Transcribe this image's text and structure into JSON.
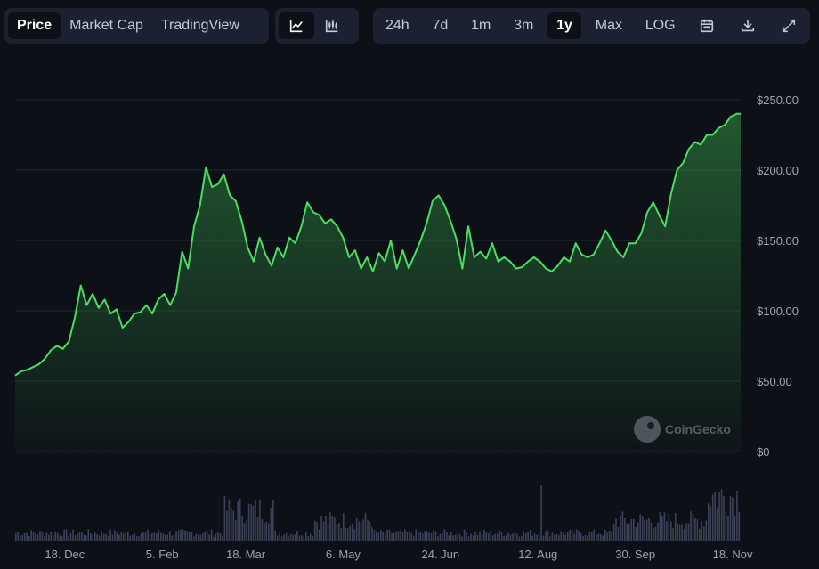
{
  "tabs": [
    {
      "label": "Price",
      "active": true
    },
    {
      "label": "Market Cap",
      "active": false
    },
    {
      "label": "TradingView",
      "active": false
    }
  ],
  "chart_types": [
    {
      "icon": "line-chart-icon",
      "active": true
    },
    {
      "icon": "candlestick-chart-icon",
      "active": false
    }
  ],
  "ranges": [
    {
      "label": "24h",
      "active": false
    },
    {
      "label": "7d",
      "active": false
    },
    {
      "label": "1m",
      "active": false
    },
    {
      "label": "3m",
      "active": false
    },
    {
      "label": "1y",
      "active": true
    },
    {
      "label": "Max",
      "active": false
    },
    {
      "label": "LOG",
      "active": false
    }
  ],
  "tools": [
    "calendar-icon",
    "download-icon",
    "expand-icon"
  ],
  "watermark": "CoinGecko",
  "colors": {
    "line": "#4ade5f",
    "background": "#0d1117",
    "panel": "#1b2130",
    "volume": "#3b4257"
  },
  "chart_data": {
    "type": "area",
    "y_ticks": [
      "$0",
      "$50.00",
      "$100.00",
      "$150.00",
      "$200.00",
      "$250.00"
    ],
    "ylim": [
      0,
      250
    ],
    "x_ticks": [
      "18. Dec",
      "5. Feb",
      "18. Mar",
      "6. May",
      "24. Jun",
      "12. Aug",
      "30. Sep",
      "18. Nov"
    ],
    "x_tick_days": [
      25,
      74,
      116,
      165,
      214,
      263,
      312,
      361
    ],
    "x_range_days": [
      0,
      365
    ],
    "grid": true,
    "series": [
      {
        "x": [
          0,
          3,
          6,
          9,
          12,
          15,
          18,
          21,
          24,
          27,
          30,
          33,
          36,
          39,
          42,
          45,
          48,
          51,
          54,
          57,
          60,
          63,
          66,
          69,
          72,
          75,
          78,
          81,
          84,
          87,
          90,
          93,
          96,
          99,
          102,
          105,
          108,
          111,
          114,
          117,
          120,
          123,
          126,
          129,
          132,
          135,
          138,
          141,
          144,
          147,
          150,
          153,
          156,
          159,
          162,
          165,
          168,
          171,
          174,
          177,
          180,
          183,
          186,
          189,
          192,
          195,
          198,
          201,
          204,
          207,
          210,
          213,
          216,
          219,
          222,
          225,
          228,
          231,
          234,
          237,
          240,
          243,
          246,
          249,
          252,
          255,
          258,
          261,
          264,
          267,
          270,
          273,
          276,
          279,
          282,
          285,
          288,
          291,
          294,
          297,
          300,
          303,
          306,
          309,
          312,
          315,
          318,
          321,
          324,
          327,
          330,
          333,
          336,
          339,
          342,
          345,
          348,
          351,
          354,
          357,
          360,
          363,
          365
        ],
        "y": [
          54,
          57,
          58,
          60,
          62,
          66,
          72,
          75,
          73,
          78,
          95,
          118,
          104,
          112,
          102,
          108,
          98,
          101,
          88,
          92,
          98,
          99,
          104,
          98,
          108,
          112,
          104,
          113,
          142,
          130,
          160,
          175,
          202,
          188,
          190,
          197,
          182,
          178,
          164,
          145,
          135,
          152,
          140,
          132,
          145,
          138,
          152,
          148,
          160,
          177,
          170,
          168,
          162,
          165,
          160,
          152,
          138,
          143,
          130,
          138,
          128,
          141,
          135,
          150,
          130,
          143,
          130,
          140,
          150,
          162,
          178,
          182,
          175,
          164,
          151,
          130,
          160,
          138,
          142,
          137,
          148,
          135,
          138,
          135,
          130,
          131,
          135,
          138,
          135,
          130,
          128,
          132,
          138,
          135,
          148,
          140,
          138,
          140,
          148,
          157,
          150,
          142,
          138,
          148,
          148,
          155,
          170,
          177,
          168,
          160,
          183,
          200,
          205,
          215,
          220,
          218,
          225,
          225,
          230,
          232,
          238,
          240,
          240
        ]
      }
    ]
  }
}
